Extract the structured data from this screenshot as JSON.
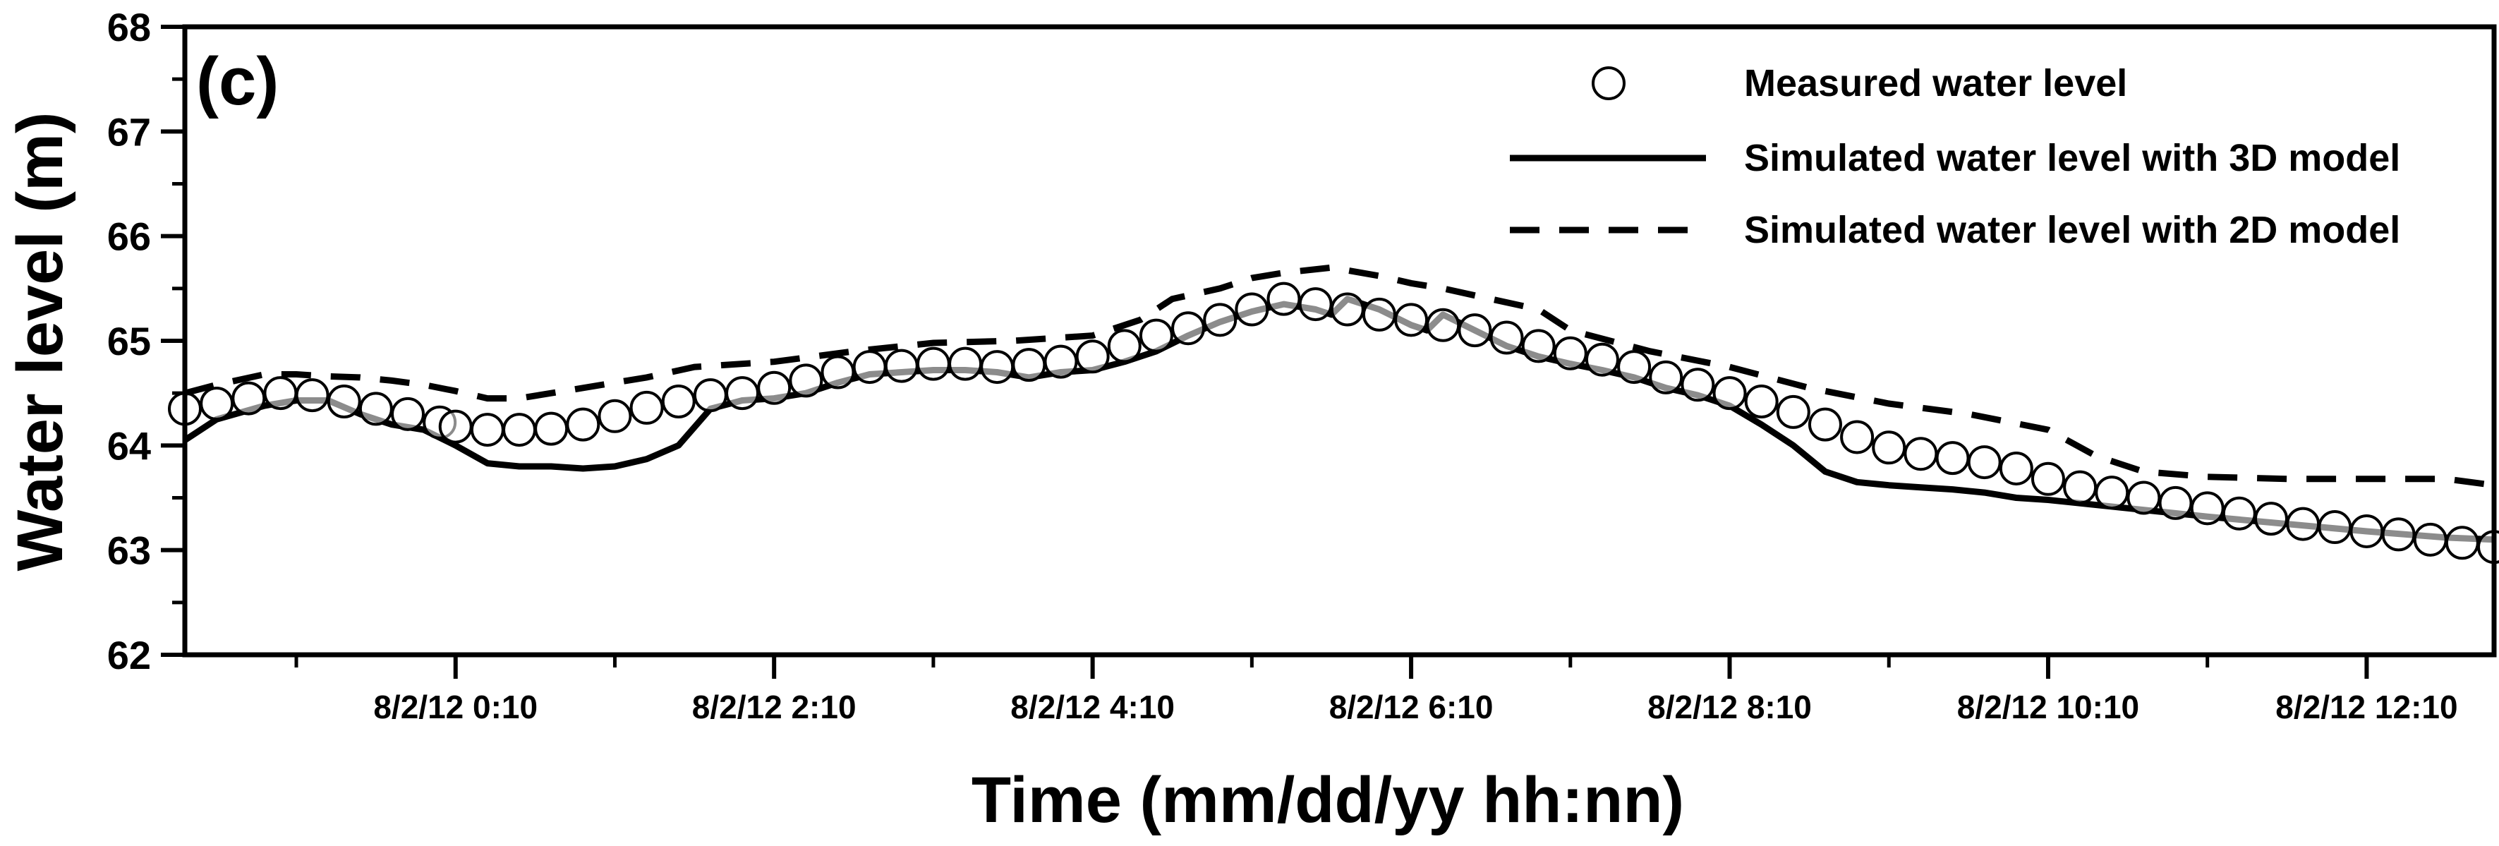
{
  "chart_data": {
    "type": "line",
    "panel_label": "(c)",
    "xlabel": "Time (mm/dd/yy hh:nn)",
    "ylabel": "Water level (m)",
    "ylim": [
      62,
      68
    ],
    "y_ticks": [
      62,
      63,
      64,
      65,
      66,
      67,
      68
    ],
    "y_tick_labels": [
      "62",
      "63",
      "64",
      "65",
      "66",
      "67",
      "68"
    ],
    "xlim_hours": [
      -1.7,
      12.8
    ],
    "x_major_ticks": [
      0,
      2,
      4,
      6,
      8,
      10,
      12
    ],
    "x_tick_labels": [
      "8/2/12 0:10",
      "8/2/12 2:10",
      "8/2/12 4:10",
      "8/2/12 6:10",
      "8/2/12 8:10",
      "8/2/12 10:10",
      "8/2/12 12:10"
    ],
    "x_minor_ticks": [
      -1,
      1,
      3,
      5,
      7,
      9,
      11
    ],
    "legend": {
      "position": "top-right",
      "entries": [
        "Measured water level",
        "Simulated water level with 3D model",
        "Simulated water level with 2D model"
      ]
    },
    "series": [
      {
        "name": "Measured water level",
        "style": "open-circle",
        "x": [
          -1.7,
          -1.5,
          -1.3,
          -1.1,
          -0.9,
          -0.7,
          -0.5,
          -0.3,
          -0.1,
          0.0,
          0.2,
          0.4,
          0.6,
          0.8,
          1.0,
          1.2,
          1.4,
          1.6,
          1.8,
          2.0,
          2.2,
          2.4,
          2.6,
          2.8,
          3.0,
          3.2,
          3.4,
          3.6,
          3.8,
          4.0,
          4.2,
          4.4,
          4.6,
          4.8,
          5.0,
          5.2,
          5.4,
          5.6,
          5.8,
          6.0,
          6.2,
          6.4,
          6.6,
          6.8,
          7.0,
          7.2,
          7.4,
          7.6,
          7.8,
          8.0,
          8.2,
          8.4,
          8.6,
          8.8,
          9.0,
          9.2,
          9.4,
          9.6,
          9.8,
          10.0,
          10.2,
          10.4,
          10.6,
          10.8,
          11.0,
          11.2,
          11.4,
          11.6,
          11.8,
          12.0,
          12.2,
          12.4,
          12.6,
          12.8
        ],
        "y": [
          64.35,
          64.4,
          64.45,
          64.5,
          64.48,
          64.42,
          64.35,
          64.3,
          64.22,
          64.18,
          64.15,
          64.15,
          64.16,
          64.2,
          64.28,
          64.36,
          64.42,
          64.48,
          64.5,
          64.55,
          64.62,
          64.7,
          64.75,
          64.76,
          64.78,
          64.78,
          64.75,
          64.77,
          64.8,
          64.85,
          64.95,
          65.05,
          65.12,
          65.2,
          65.3,
          65.4,
          65.35,
          65.3,
          65.25,
          65.2,
          65.15,
          65.1,
          65.03,
          64.95,
          64.88,
          64.82,
          64.75,
          64.65,
          64.58,
          64.5,
          64.42,
          64.32,
          64.2,
          64.08,
          63.98,
          63.92,
          63.88,
          63.84,
          63.78,
          63.68,
          63.6,
          63.55,
          63.5,
          63.45,
          63.4,
          63.35,
          63.3,
          63.25,
          63.22,
          63.18,
          63.15,
          63.1,
          63.07,
          63.03
        ]
      },
      {
        "name": "Simulated water level with 3D model",
        "style": "solid",
        "x": [
          -1.7,
          -1.5,
          -1.2,
          -1.0,
          -0.8,
          -0.6,
          -0.4,
          -0.2,
          0.0,
          0.2,
          0.4,
          0.6,
          0.8,
          1.0,
          1.2,
          1.4,
          1.6,
          1.8,
          2.0,
          2.2,
          2.4,
          2.6,
          2.8,
          3.0,
          3.2,
          3.4,
          3.6,
          3.8,
          4.0,
          4.2,
          4.4,
          4.6,
          4.8,
          5.0,
          5.2,
          5.4,
          5.5,
          5.6,
          5.8,
          6.0,
          6.1,
          6.2,
          6.4,
          6.6,
          6.8,
          7.0,
          7.2,
          7.4,
          7.6,
          7.8,
          8.0,
          8.2,
          8.4,
          8.6,
          8.8,
          9.0,
          9.2,
          9.4,
          9.6,
          9.8,
          10.0,
          10.5,
          11.0,
          11.5,
          12.0,
          12.5,
          12.8
        ],
        "y": [
          64.05,
          64.25,
          64.38,
          64.43,
          64.43,
          64.3,
          64.2,
          64.15,
          64.0,
          63.83,
          63.8,
          63.8,
          63.78,
          63.8,
          63.87,
          64.0,
          64.35,
          64.43,
          64.45,
          64.5,
          64.6,
          64.68,
          64.7,
          64.72,
          64.72,
          64.7,
          64.65,
          64.7,
          64.72,
          64.8,
          64.9,
          65.05,
          65.18,
          65.28,
          65.35,
          65.3,
          65.25,
          65.4,
          65.3,
          65.15,
          65.1,
          65.25,
          65.1,
          64.95,
          64.85,
          64.78,
          64.72,
          64.65,
          64.55,
          64.48,
          64.38,
          64.2,
          64.0,
          63.75,
          63.65,
          63.62,
          63.6,
          63.58,
          63.55,
          63.5,
          63.48,
          63.4,
          63.32,
          63.25,
          63.18,
          63.12,
          63.1
        ]
      },
      {
        "name": "Simulated water level with 2D model",
        "style": "dashed",
        "x": [
          -1.7,
          -1.5,
          -1.2,
          -1.0,
          -0.8,
          -0.6,
          -0.4,
          -0.2,
          0.0,
          0.2,
          0.4,
          0.6,
          0.8,
          1.0,
          1.2,
          1.5,
          2.0,
          2.5,
          3.0,
          3.5,
          4.0,
          4.3,
          4.5,
          4.8,
          5.0,
          5.2,
          5.5,
          5.8,
          6.0,
          6.2,
          6.5,
          6.8,
          7.0,
          7.5,
          8.0,
          8.5,
          9.0,
          9.5,
          10.0,
          10.3,
          10.6,
          11.0,
          11.5,
          12.0,
          12.5,
          12.8
        ],
        "y": [
          64.5,
          64.58,
          64.68,
          64.68,
          64.66,
          64.65,
          64.62,
          64.58,
          64.52,
          64.45,
          64.45,
          64.5,
          64.55,
          64.6,
          64.65,
          64.75,
          64.8,
          64.9,
          64.98,
          65.0,
          65.05,
          65.2,
          65.4,
          65.5,
          65.6,
          65.65,
          65.7,
          65.62,
          65.55,
          65.5,
          65.4,
          65.3,
          65.1,
          64.9,
          64.75,
          64.55,
          64.4,
          64.3,
          64.15,
          63.9,
          63.75,
          63.7,
          63.68,
          63.68,
          63.68,
          63.62
        ]
      }
    ]
  }
}
